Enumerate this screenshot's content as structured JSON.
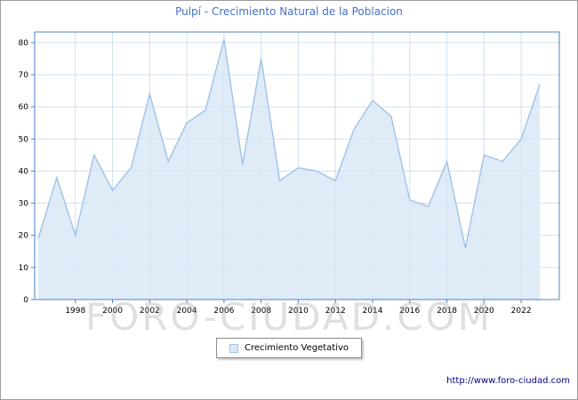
{
  "title": "Pulpí - Crecimiento Natural de la Poblacion",
  "legend": {
    "label": "Crecimiento Vegetativo"
  },
  "watermark": "FORO-CIUDAD.COM",
  "footer": {
    "url": "http://www.foro-ciudad.com"
  },
  "colors": {
    "title": "#4470c4",
    "plot_border": "#4f81bd",
    "grid": "#cfe0f2",
    "area_fill": "#dbe8f7",
    "area_line": "#9fc3e7",
    "tick_text": "#000000",
    "url_text": "#000080"
  },
  "chart_data": {
    "type": "area",
    "title": "Pulpí - Crecimiento Natural de la Poblacion",
    "x": [
      1996,
      1997,
      1998,
      1999,
      2000,
      2001,
      2002,
      2003,
      2004,
      2005,
      2006,
      2007,
      2008,
      2009,
      2010,
      2011,
      2012,
      2013,
      2014,
      2015,
      2016,
      2017,
      2018,
      2019,
      2020,
      2021,
      2022,
      2023
    ],
    "series": [
      {
        "name": "Crecimiento Vegetativo",
        "values": [
          19,
          38,
          20,
          45,
          34,
          41,
          64,
          43,
          55,
          59,
          81,
          42,
          75,
          37,
          41,
          40,
          37,
          53,
          62,
          57,
          31,
          29,
          43,
          16,
          45,
          43,
          50,
          67
        ]
      }
    ],
    "ylim": [
      0,
      80
    ],
    "yticks": [
      0,
      10,
      20,
      30,
      40,
      50,
      60,
      70,
      80
    ],
    "xtick_labels": [
      "1998",
      "2000",
      "2002",
      "2004",
      "2006",
      "2008",
      "2010",
      "2012",
      "2014",
      "2016",
      "2018",
      "2020",
      "2022"
    ],
    "grid": true,
    "legend_position": "bottom"
  }
}
